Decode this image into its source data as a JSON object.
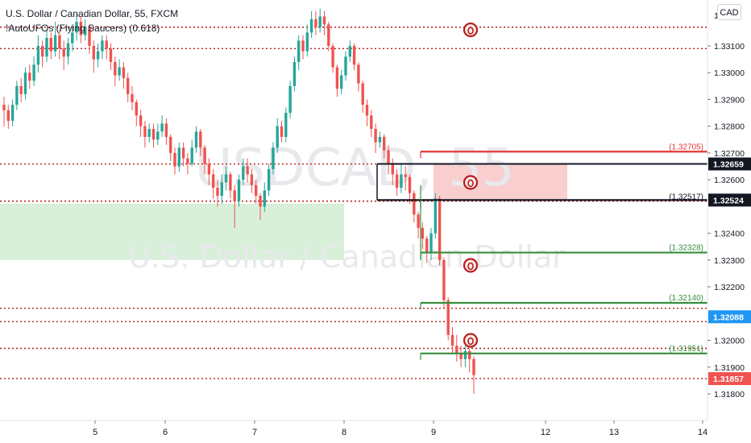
{
  "header": {
    "symbol_title": "U.S. Dollar / Canadian Dollar, 55, FXCM",
    "indicator": "!AutoUFOs (Flying Saucers) (0.618)"
  },
  "currency_button": "CAD",
  "watermark": {
    "symbol": "USDCAD, 55",
    "description": "U.S. Dollar / Canadian Dollar"
  },
  "colors": {
    "up": "#26a69a",
    "down": "#ef5350",
    "red_line": "#e53935",
    "green_line": "#388e3c",
    "dotted": "#b71c1c",
    "blue_badge": "#2196f3"
  },
  "chart_data": {
    "type": "candlestick",
    "y_axis": {
      "ticks": [
        "1.33100",
        "1.33000",
        "1.32900",
        "1.32800",
        "1.32700",
        "1.32600",
        "1.32400",
        "1.32300",
        "1.32200",
        "1.32000",
        "1.31900",
        "1.31800"
      ],
      "range": [
        1.3173,
        1.332
      ]
    },
    "x_axis": {
      "ticks": [
        "5",
        "6",
        "7",
        "8",
        "9",
        "12",
        "13",
        "14"
      ]
    },
    "price_badges": [
      {
        "label": "1.32659",
        "value": 1.32659,
        "style": "black"
      },
      {
        "label": "1.32524",
        "value": 1.32524,
        "style": "black"
      },
      {
        "label": "1.32088",
        "value": 1.32088,
        "style": "blue"
      },
      {
        "label": "1.31857",
        "value": 1.31857,
        "style": "red"
      }
    ],
    "level_labels": [
      {
        "label": "(1.32705)",
        "value": 1.32705,
        "color": "red"
      },
      {
        "label": "(1.32517)",
        "value": 1.32517,
        "color": "black"
      },
      {
        "label": "(1.32328)",
        "value": 1.32328,
        "color": "green"
      },
      {
        "label": "(1.32140)",
        "value": 1.3214,
        "color": "green"
      },
      {
        "label": "(1.31951)",
        "value": 1.31951,
        "color": "green"
      }
    ],
    "dotted_levels": [
      1.3317,
      1.3309,
      1.32659,
      1.3252,
      1.3212,
      1.3207,
      1.3197,
      1.31857
    ],
    "zones": [
      {
        "name": "green-zone",
        "y_top": 1.3251,
        "y_bottom": 1.323,
        "x_start": 0.0,
        "x_end": 3.87
      },
      {
        "name": "red-zone",
        "y_top": 1.32659,
        "y_bottom": 1.32524,
        "x_start": 3.95,
        "x_end": 5.25
      }
    ],
    "saucers": [
      {
        "x": 4.39,
        "y": 1.3316
      },
      {
        "x": 4.39,
        "y": 1.3259
      },
      {
        "x": 4.39,
        "y": 1.3228
      },
      {
        "x": 4.39,
        "y": 1.32
      }
    ],
    "candles": [
      [
        1.3288,
        1.3286,
        1.3291,
        1.328
      ],
      [
        1.3286,
        1.3282,
        1.3288,
        1.3279
      ],
      [
        1.3282,
        1.3288,
        1.329,
        1.328
      ],
      [
        1.3288,
        1.3295,
        1.3297,
        1.3286
      ],
      [
        1.3295,
        1.3292,
        1.3298,
        1.3289
      ],
      [
        1.3292,
        1.33,
        1.3302,
        1.329
      ],
      [
        1.33,
        1.3297,
        1.3303,
        1.3294
      ],
      [
        1.3297,
        1.3303,
        1.3306,
        1.3295
      ],
      [
        1.3303,
        1.331,
        1.3314,
        1.33
      ],
      [
        1.331,
        1.3306,
        1.3312,
        1.3302
      ],
      [
        1.3306,
        1.3313,
        1.3316,
        1.3304
      ],
      [
        1.3313,
        1.3308,
        1.3315,
        1.3305
      ],
      [
        1.3308,
        1.3314,
        1.3319,
        1.3306
      ],
      [
        1.3314,
        1.3309,
        1.3316,
        1.3305
      ],
      [
        1.3309,
        1.3306,
        1.3312,
        1.3301
      ],
      [
        1.3306,
        1.3311,
        1.3313,
        1.3303
      ],
      [
        1.3311,
        1.3315,
        1.3318,
        1.3308
      ],
      [
        1.3315,
        1.3319,
        1.3322,
        1.3312
      ],
      [
        1.3319,
        1.3314,
        1.3321,
        1.3311
      ],
      [
        1.3314,
        1.3317,
        1.332,
        1.3312
      ],
      [
        1.3317,
        1.331,
        1.3318,
        1.3307
      ],
      [
        1.331,
        1.3305,
        1.3312,
        1.33
      ],
      [
        1.3305,
        1.3308,
        1.3311,
        1.3302
      ],
      [
        1.3308,
        1.3312,
        1.3314,
        1.3305
      ],
      [
        1.3312,
        1.3309,
        1.3314,
        1.3305
      ],
      [
        1.3309,
        1.3304,
        1.3311,
        1.3301
      ],
      [
        1.3304,
        1.3299,
        1.3306,
        1.3295
      ],
      [
        1.3299,
        1.3302,
        1.3305,
        1.3297
      ],
      [
        1.3302,
        1.3298,
        1.3304,
        1.3294
      ],
      [
        1.3298,
        1.3292,
        1.33,
        1.3289
      ],
      [
        1.3292,
        1.3289,
        1.3295,
        1.3286
      ],
      [
        1.3289,
        1.3284,
        1.329,
        1.328
      ],
      [
        1.3284,
        1.328,
        1.3286,
        1.3276
      ],
      [
        1.328,
        1.3276,
        1.3282,
        1.3272
      ],
      [
        1.3276,
        1.3279,
        1.3281,
        1.3274
      ],
      [
        1.3279,
        1.3275,
        1.3281,
        1.3272
      ],
      [
        1.3275,
        1.3278,
        1.3281,
        1.3273
      ],
      [
        1.3278,
        1.3281,
        1.3284,
        1.3276
      ],
      [
        1.3281,
        1.3276,
        1.3283,
        1.3273
      ],
      [
        1.3276,
        1.327,
        1.3277,
        1.3267
      ],
      [
        1.327,
        1.3265,
        1.3272,
        1.3262
      ],
      [
        1.3265,
        1.3272,
        1.3274,
        1.3263
      ],
      [
        1.3272,
        1.3268,
        1.3274,
        1.3265
      ],
      [
        1.3268,
        1.3266,
        1.327,
        1.3262
      ],
      [
        1.3266,
        1.3272,
        1.3275,
        1.3265
      ],
      [
        1.3272,
        1.3278,
        1.328,
        1.327
      ],
      [
        1.3278,
        1.3272,
        1.3279,
        1.3269
      ],
      [
        1.3272,
        1.3266,
        1.3273,
        1.3262
      ],
      [
        1.3266,
        1.3262,
        1.3268,
        1.3258
      ],
      [
        1.3262,
        1.3257,
        1.3264,
        1.3253
      ],
      [
        1.3257,
        1.3254,
        1.326,
        1.325
      ],
      [
        1.3254,
        1.3259,
        1.3262,
        1.3251
      ],
      [
        1.3259,
        1.3262,
        1.3265,
        1.3256
      ],
      [
        1.3262,
        1.3256,
        1.3263,
        1.3253
      ],
      [
        1.3256,
        1.3252,
        1.3258,
        1.3242
      ],
      [
        1.3252,
        1.326,
        1.3262,
        1.325
      ],
      [
        1.326,
        1.3265,
        1.3268,
        1.3258
      ],
      [
        1.3265,
        1.3262,
        1.3268,
        1.3259
      ],
      [
        1.3262,
        1.3258,
        1.3264,
        1.3255
      ],
      [
        1.3258,
        1.3254,
        1.326,
        1.3251
      ],
      [
        1.3254,
        1.325,
        1.3255,
        1.3245
      ],
      [
        1.325,
        1.3256,
        1.3259,
        1.3248
      ],
      [
        1.3256,
        1.3264,
        1.3266,
        1.3254
      ],
      [
        1.3264,
        1.3272,
        1.3274,
        1.3262
      ],
      [
        1.3272,
        1.328,
        1.3283,
        1.327
      ],
      [
        1.328,
        1.3276,
        1.3282,
        1.3274
      ],
      [
        1.3276,
        1.3285,
        1.3287,
        1.3274
      ],
      [
        1.3285,
        1.3295,
        1.3297,
        1.3283
      ],
      [
        1.3295,
        1.3304,
        1.3306,
        1.3293
      ],
      [
        1.3304,
        1.3312,
        1.3314,
        1.3301
      ],
      [
        1.3312,
        1.3308,
        1.3314,
        1.3305
      ],
      [
        1.3308,
        1.3315,
        1.3318,
        1.3306
      ],
      [
        1.3315,
        1.332,
        1.3323,
        1.3313
      ],
      [
        1.332,
        1.3317,
        1.3323,
        1.3314
      ],
      [
        1.3317,
        1.3321,
        1.3324,
        1.3315
      ],
      [
        1.3321,
        1.3318,
        1.3323,
        1.3314
      ],
      [
        1.3318,
        1.331,
        1.3319,
        1.3308
      ],
      [
        1.331,
        1.3302,
        1.3311,
        1.33
      ],
      [
        1.3302,
        1.3294,
        1.3303,
        1.3291
      ],
      [
        1.3294,
        1.3299,
        1.3301,
        1.3292
      ],
      [
        1.3299,
        1.3306,
        1.3308,
        1.3297
      ],
      [
        1.3306,
        1.331,
        1.3312,
        1.3304
      ],
      [
        1.331,
        1.3303,
        1.3311,
        1.3301
      ],
      [
        1.3303,
        1.3296,
        1.3304,
        1.3293
      ],
      [
        1.3296,
        1.3288,
        1.3297,
        1.3285
      ],
      [
        1.3288,
        1.3284,
        1.329,
        1.328
      ],
      [
        1.3284,
        1.3279,
        1.3286,
        1.3276
      ],
      [
        1.3279,
        1.3274,
        1.3281,
        1.327
      ],
      [
        1.3274,
        1.3276,
        1.3278,
        1.3272
      ],
      [
        1.3276,
        1.3271,
        1.3277,
        1.3268
      ],
      [
        1.3271,
        1.3266,
        1.3273,
        1.3262
      ],
      [
        1.3266,
        1.3262,
        1.3268,
        1.3258
      ],
      [
        1.3262,
        1.3257,
        1.3264,
        1.3254
      ],
      [
        1.3257,
        1.3262,
        1.3266,
        1.3255
      ],
      [
        1.3262,
        1.3261,
        1.3265,
        1.3256
      ],
      [
        1.3261,
        1.3255,
        1.3262,
        1.3251
      ],
      [
        1.3255,
        1.3247,
        1.3256,
        1.3244
      ],
      [
        1.3247,
        1.3242,
        1.3248,
        1.3238
      ],
      [
        1.3242,
        1.3238,
        1.3244,
        1.3234
      ],
      [
        1.3238,
        1.3233,
        1.3239,
        1.3229
      ],
      [
        1.3233,
        1.324,
        1.3242,
        1.323
      ],
      [
        1.324,
        1.3253,
        1.3255,
        1.3238
      ],
      [
        1.3253,
        1.323,
        1.3254,
        1.3228
      ],
      [
        1.323,
        1.3215,
        1.3231,
        1.3212
      ],
      [
        1.3215,
        1.3202,
        1.3216,
        1.32
      ],
      [
        1.3202,
        1.3198,
        1.3205,
        1.3195
      ],
      [
        1.3198,
        1.3195,
        1.3202,
        1.3192
      ],
      [
        1.3195,
        1.3193,
        1.3198,
        1.319
      ],
      [
        1.3193,
        1.3196,
        1.3198,
        1.319
      ],
      [
        1.3196,
        1.3193,
        1.3197,
        1.3188
      ],
      [
        1.3193,
        1.3187,
        1.3194,
        1.318
      ]
    ]
  }
}
